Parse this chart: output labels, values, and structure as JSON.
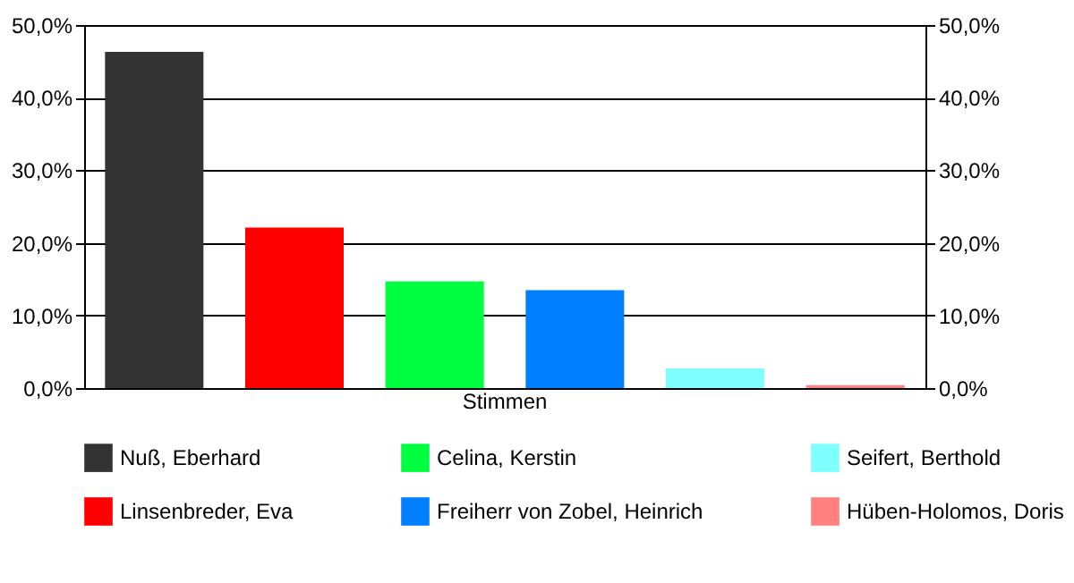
{
  "chart_data": {
    "type": "bar",
    "categories": [
      "Stimmen"
    ],
    "series": [
      {
        "name": "Nuß, Eberhard",
        "color": "#333333",
        "values": [
          46.3
        ]
      },
      {
        "name": "Linsenbreder, Eva",
        "color": "#ff0000",
        "values": [
          22.1
        ]
      },
      {
        "name": "Celina, Kerstin",
        "color": "#00ff40",
        "values": [
          14.7
        ]
      },
      {
        "name": "Freiherr von Zobel, Heinrich",
        "color": "#0080ff",
        "values": [
          13.5
        ]
      },
      {
        "name": "Seifert, Berthold",
        "color": "#80ffff",
        "values": [
          2.7
        ]
      },
      {
        "name": "Hüben-Holomos, Doris",
        "color": "#ff8080",
        "values": [
          0.4
        ]
      }
    ],
    "ylim": [
      0,
      50
    ],
    "yticks": [
      {
        "value": 0,
        "label": "0,0%"
      },
      {
        "value": 10,
        "label": "10,0%"
      },
      {
        "value": 20,
        "label": "20,0%"
      },
      {
        "value": 30,
        "label": "30,0%"
      },
      {
        "value": 40,
        "label": "40,0%"
      },
      {
        "value": 50,
        "label": "50,0%"
      }
    ],
    "grid": "y",
    "legend": "bottom"
  }
}
